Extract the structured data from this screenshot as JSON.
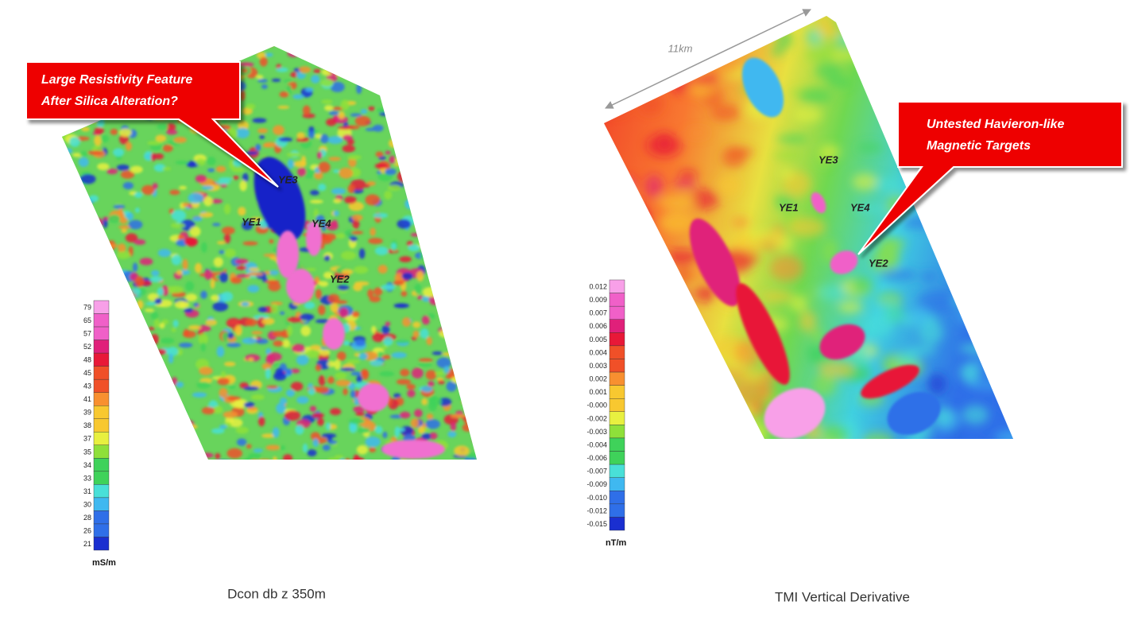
{
  "panels": [
    {
      "legend": {
        "ticks": [
          "79",
          "65",
          "57",
          "52",
          "48",
          "45",
          "43",
          "41",
          "39",
          "38",
          "37",
          "35",
          "34",
          "33",
          "31",
          "30",
          "28",
          "26",
          "21"
        ],
        "unit": "mS/m"
      },
      "caption": "Dcon db z 350m",
      "callout": [
        "Large Resistivity Feature",
        "After Silica Alteration?"
      ],
      "targets": [
        "YE3",
        "YE1",
        "YE4",
        "YE2"
      ]
    },
    {
      "legend": {
        "ticks": [
          "0.012",
          "0.009",
          "0.007",
          "0.006",
          "0.005",
          "0.004",
          "0.003",
          "0.002",
          "0.001",
          "-0.000",
          "-0.002",
          "-0.003",
          "-0.004",
          "-0.006",
          "-0.007",
          "-0.009",
          "-0.010",
          "-0.012",
          "-0.015"
        ],
        "unit": "nT/m"
      },
      "caption": "TMI Vertical Derivative",
      "callout": [
        "Untested Havieron-like",
        "Magnetic Targets"
      ],
      "targets": [
        "YE3",
        "YE1",
        "YE4",
        "YE2"
      ],
      "scale_label": "11km"
    }
  ]
}
